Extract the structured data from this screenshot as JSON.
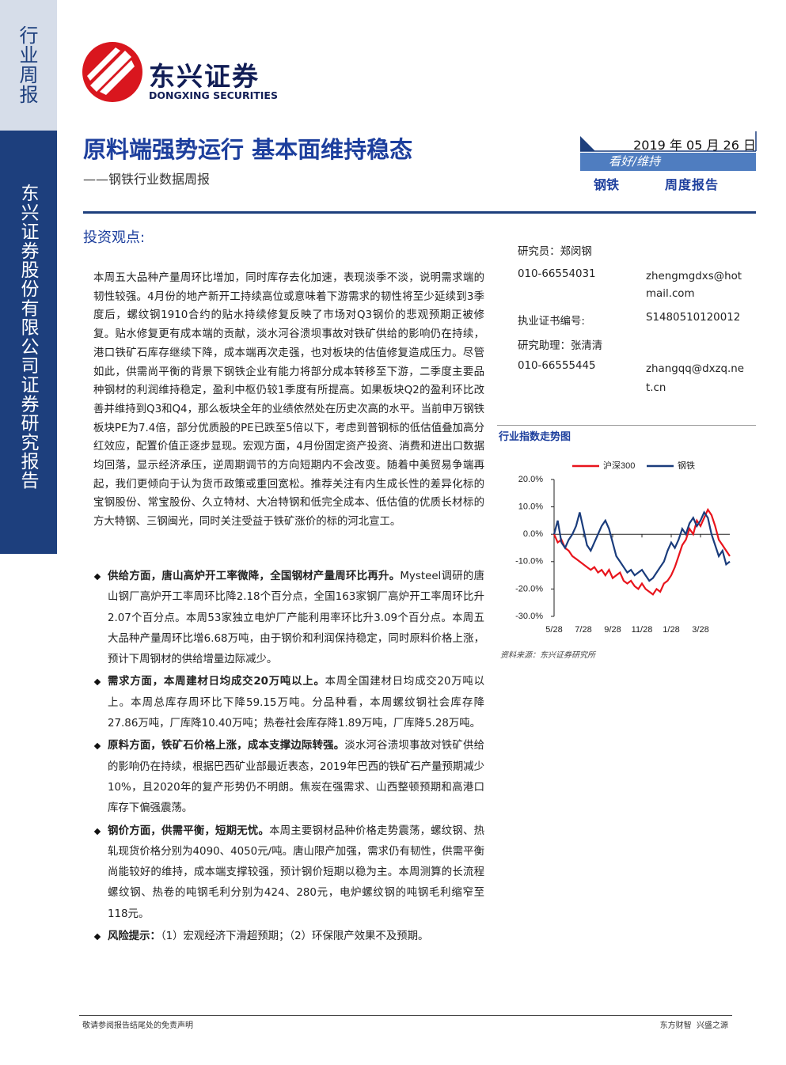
{
  "sidebar": {
    "type_label": "行业周报",
    "company": "东兴证券股份有限公司证券研究报告"
  },
  "logo": {
    "name": "东兴证券",
    "name_en": "DONGXING SECURITIES"
  },
  "header": {
    "title": "原料端强势运行 基本面维持稳态",
    "subtitle": "——钢铁行业数据周报",
    "date": "2019 年 05 月 26 日",
    "rating": "看好/维持",
    "industry": "钢铁",
    "report_type": "周度报告"
  },
  "section_title": "投资观点:",
  "summary": "本周五大品种产量周环比增加，同时库存去化加速，表现淡季不淡，说明需求端的韧性较强。4月份的地产新开工持续高位或意味着下游需求的韧性将至少延续到3季度后，螺纹钢1910合约的贴水持续修复反映了市场对Q3钢价的悲观预期正被修复。贴水修复更有成本端的贡献，淡水河谷溃坝事故对铁矿供给的影响仍在持续，港口铁矿石库存继续下降，成本端再次走强，也对板块的估值修复造成压力。尽管如此，供需尚平衡的背景下钢铁企业有能力将部分成本转移至下游，二季度主要品种钢材的利润维持稳定，盈利中枢仍较1季度有所提高。如果板块Q2的盈利环比改善并维持到Q3和Q4，那么板块全年的业绩依然处在历史次高的水平。当前申万钢铁板块PE为7.4倍，部分优质股的PE已跌至5倍以下，考虑到普钢标的低估值叠加高分红效应，配置价值正逐步显现。宏观方面，4月份固定资产投资、消费和进出口数据均回落，显示经济承压，逆周期调节的方向短期内不会改变。随着中美贸易争端再起，我们更倾向于认为货币政策或重回宽松。推荐关注有内生成长性的差异化标的宝钢股份、常宝股份、久立特材、大冶特钢和低完全成本、低估值的优质长材标的方大特钢、三钢闽光，同时关注受益于铁矿涨价的标的河北宣工。",
  "bullets": [
    {
      "lead": "供给方面，唐山高炉开工率微降，全国钢材产量周环比再升。",
      "text": "Mysteel调研的唐山钢厂高炉开工率周环比降2.18个百分点，全国163家钢厂高炉开工率周环比升2.07个百分点。本周53家独立电炉厂产能利用率环比升3.09个百分点。本周五大品种产量周环比增6.68万吨，由于钢价和利润保持稳定，同时原料价格上涨，预计下周钢材的供给增量边际减少。"
    },
    {
      "lead": "需求方面，本周建材日均成交20万吨以上。",
      "text": "本周全国建材日均成交20万吨以上。本周总库存周环比下降59.15万吨。分品种看，本周螺纹钢社会库存降27.86万吨，厂库降10.40万吨；热卷社会库存降1.89万吨，厂库降5.28万吨。"
    },
    {
      "lead": "原料方面，铁矿石价格上涨，成本支撑边际转强。",
      "text": "淡水河谷溃坝事故对铁矿供给的影响仍在持续，根据巴西矿业部最近表态，2019年巴西的铁矿石产量预期减少10%，且2020年的复产形势仍不明朗。焦炭在强需求、山西整顿预期和高港口库存下偏强震荡。"
    },
    {
      "lead": "钢价方面，供需平衡，短期无忧。",
      "text": "本周主要钢材品种价格走势震荡，螺纹钢、热轧现货价格分别为4090、4050元/吨。唐山限产加强，需求仍有韧性，供需平衡尚能较好的维持，成本端支撑较强，预计钢价短期以稳为主。本周测算的长流程螺纹钢、热卷的吨钢毛利分别为424、280元，电炉螺纹钢的吨钢毛利缩窄至118元。"
    },
    {
      "lead": "风险提示：",
      "text": "（1）宏观经济下滑超预期；（2）环保限产效果不及预期。"
    }
  ],
  "analysts": {
    "researcher": "研究员：郑闵钢",
    "researcher_phone": "010-66554031",
    "researcher_email": "zhengmgdxs@hotmail.com",
    "license_label": "执业证书编号:",
    "license": "S1480510120012",
    "assistant": "研究助理：张清清",
    "assistant_phone": "010-66555445",
    "assistant_email": "zhangqq@dxzq.net.cn"
  },
  "chart_data": {
    "type": "line",
    "title": "行业指数走势图",
    "source": "资料来源：东兴证券研究所",
    "x": [
      0,
      0.25,
      0.5,
      0.75,
      1,
      1.25,
      1.5,
      1.75,
      2,
      2.25,
      2.5,
      2.75,
      3,
      3.25,
      3.5,
      3.75,
      4,
      4.25,
      4.5,
      4.75,
      5,
      5.25,
      5.5,
      5.75,
      6,
      6.25,
      6.5,
      6.75,
      7,
      7.25,
      7.5,
      7.75,
      8,
      8.25,
      8.5,
      8.75,
      9,
      9.25,
      9.5,
      9.75,
      10,
      10.25,
      10.5,
      10.75,
      11,
      11.25,
      11.5,
      11.75,
      12
    ],
    "series": [
      {
        "name": "沪深300",
        "color": "#e8141c",
        "values": [
          0,
          -3,
          -2,
          -5,
          -6,
          -8,
          -9,
          -10,
          -11,
          -12,
          -13,
          -12,
          -14,
          -13,
          -15,
          -13,
          -16,
          -15,
          -14,
          -17,
          -18,
          -17,
          -19,
          -20,
          -18,
          -20,
          -21,
          -22,
          -20,
          -21,
          -18,
          -17,
          -15,
          -12,
          -8,
          -4,
          -2,
          2,
          0,
          5,
          3,
          6,
          9,
          7,
          3,
          -2,
          -4,
          -6,
          -8
        ]
      },
      {
        "name": "钢铁",
        "color": "#1a3c7c",
        "values": [
          0,
          5,
          -3,
          -5,
          -2,
          0,
          3,
          8,
          2,
          -4,
          -6,
          -3,
          0,
          3,
          5,
          2,
          -3,
          -8,
          -10,
          -12,
          -14,
          -13,
          -15,
          -14,
          -13,
          -15,
          -17,
          -16,
          -14,
          -12,
          -10,
          -6,
          -3,
          -5,
          -2,
          2,
          0,
          4,
          6,
          3,
          5,
          8,
          6,
          0,
          -4,
          -8,
          -6,
          -11,
          -10
        ]
      }
    ],
    "xlim": [
      0,
      12
    ],
    "xticks": [
      {
        "value": 0,
        "label": "5/28"
      },
      {
        "value": 2,
        "label": "7/28"
      },
      {
        "value": 4,
        "label": "9/28"
      },
      {
        "value": 6,
        "label": "11/28"
      },
      {
        "value": 8,
        "label": "1/28"
      },
      {
        "value": 10,
        "label": "3/28"
      }
    ],
    "ylim": [
      -30,
      20
    ],
    "yticks": [
      {
        "value": 20,
        "label": "20.0%"
      },
      {
        "value": 10,
        "label": "10.0%"
      },
      {
        "value": 0,
        "label": "0.0%"
      },
      {
        "value": -10,
        "label": "-10.0%"
      },
      {
        "value": -20,
        "label": "-20.0%"
      },
      {
        "value": -30,
        "label": "-30.0%"
      }
    ],
    "grid": false
  },
  "footer": {
    "left": "敬请参阅报告结尾处的免责声明",
    "right": "东方财智  兴盛之源"
  }
}
